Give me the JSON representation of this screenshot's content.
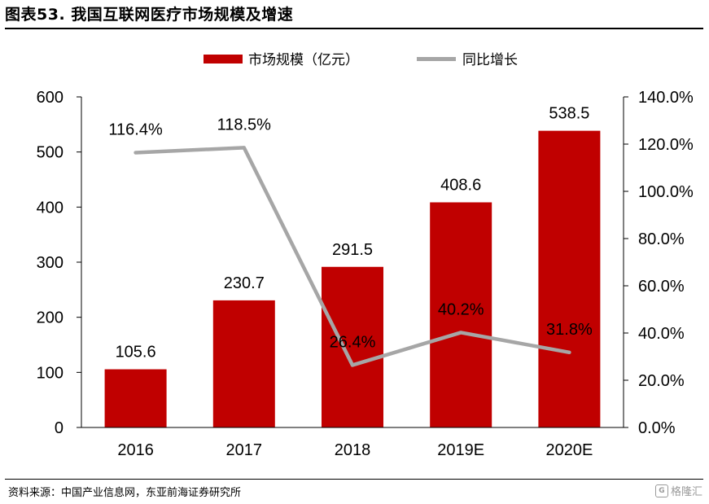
{
  "figure": {
    "title": "图表53. 我国互联网医疗市场规模及增速",
    "source": "资料来源：中国产业信息网，东亚前海证券研究所",
    "watermark": "格隆汇",
    "watermark_logo": "G"
  },
  "chart_data": {
    "type": "bar",
    "categories": [
      "2016",
      "2017",
      "2018",
      "2019E",
      "2020E"
    ],
    "series": [
      {
        "name": "市场规模（亿元）",
        "type": "bar",
        "axis": "left",
        "values": [
          105.6,
          230.7,
          291.5,
          408.6,
          538.5
        ],
        "labels": [
          "105.6",
          "230.7",
          "291.5",
          "408.6",
          "538.5"
        ],
        "color": "#C00000"
      },
      {
        "name": "同比增长",
        "type": "line",
        "axis": "right",
        "values": [
          116.4,
          118.5,
          26.4,
          40.2,
          31.8
        ],
        "labels": [
          "116.4%",
          "118.5%",
          "26.4%",
          "40.2%",
          "31.8%"
        ],
        "color": "#A6A6A6"
      }
    ],
    "y_left": {
      "min": 0,
      "max": 600,
      "ticks": [
        "0",
        "100",
        "200",
        "300",
        "400",
        "500",
        "600"
      ]
    },
    "y_right": {
      "min": 0,
      "max": 140,
      "ticks": [
        "0.0%",
        "20.0%",
        "40.0%",
        "60.0%",
        "80.0%",
        "100.0%",
        "120.0%",
        "140.0%"
      ]
    },
    "legend_position": "top-center",
    "grid": false
  }
}
